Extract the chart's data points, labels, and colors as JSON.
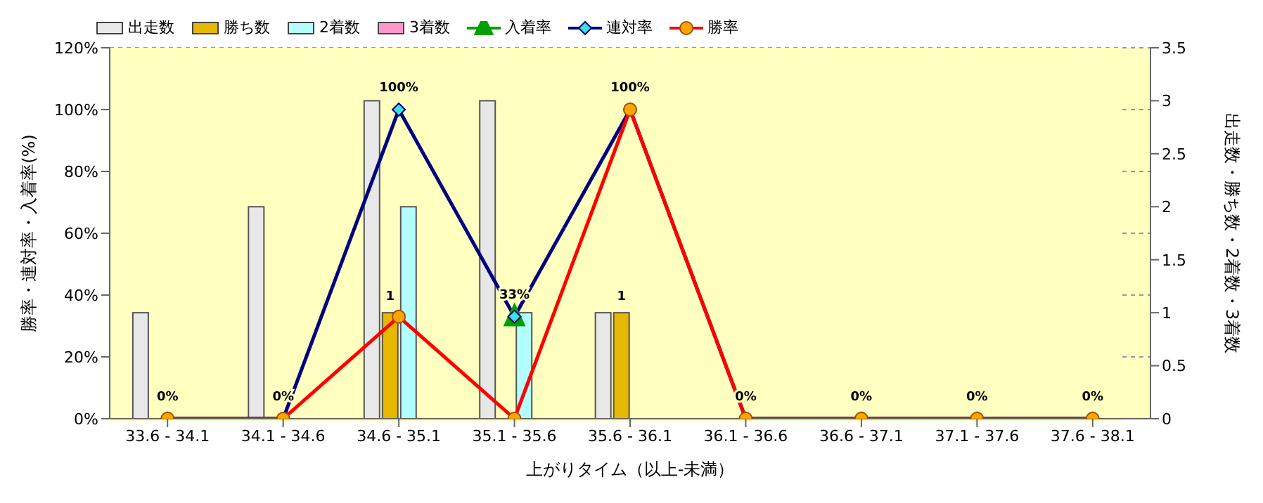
{
  "chart_data": {
    "type": "bar",
    "xlabel": "上がりタイム（以上-未満）",
    "ylabel": "勝率・連対率・入着率(%)",
    "y2label": "出走数・勝ち数・2着数・3着数",
    "categories": [
      "33.6 - 34.1",
      "34.1 - 34.6",
      "34.6 - 35.1",
      "35.1 - 35.6",
      "35.6 - 36.1",
      "36.1 - 36.6",
      "36.6 - 37.1",
      "37.1 - 37.6",
      "37.6 - 38.1"
    ],
    "series": [
      {
        "name": "出走数",
        "axis": "y2",
        "color": "#e8e8e8",
        "values": [
          1,
          2,
          3,
          3,
          1,
          0,
          0,
          0,
          0
        ]
      },
      {
        "name": "勝ち数",
        "axis": "y2",
        "color": "#e6b800",
        "values": [
          0,
          0,
          1,
          0,
          1,
          0,
          0,
          0,
          0
        ],
        "value_labels": [
          null,
          null,
          "1",
          null,
          "1",
          null,
          null,
          null,
          null
        ]
      },
      {
        "name": "2着数",
        "axis": "y2",
        "color": "#b3ffff",
        "values": [
          0,
          0,
          2,
          1,
          0,
          0,
          0,
          0,
          0
        ]
      },
      {
        "name": "3着数",
        "axis": "y2",
        "color": "#ff99cc",
        "values": [
          0,
          0,
          0,
          0,
          0,
          0,
          0,
          0,
          0
        ]
      },
      {
        "name": "入着率",
        "type": "line",
        "color": "#00a000",
        "marker": "triangle",
        "values": [
          null,
          null,
          null,
          33,
          null,
          null,
          null,
          null,
          null
        ]
      },
      {
        "name": "連対率",
        "type": "line",
        "color": "#000080",
        "marker": "diamond",
        "values": [
          0,
          0,
          100,
          33,
          100,
          0,
          0,
          0,
          0
        ],
        "value_labels": [
          "0%",
          "0%",
          "100%",
          "33%",
          "100%",
          "0%",
          "0%",
          "0%",
          "0%"
        ]
      },
      {
        "name": "勝率",
        "type": "line",
        "color": "#ff0000",
        "marker": "circle",
        "values": [
          0,
          0,
          33,
          0,
          100,
          0,
          0,
          0,
          0
        ]
      }
    ],
    "ylim": [
      0,
      120
    ],
    "yticks": [
      {
        "value": 0,
        "label": "0%"
      },
      {
        "value": 20,
        "label": "20%"
      },
      {
        "value": 40,
        "label": "40%"
      },
      {
        "value": 60,
        "label": "60%"
      },
      {
        "value": 80,
        "label": "80%"
      },
      {
        "value": 100,
        "label": "100%"
      },
      {
        "value": 120,
        "label": "120%"
      }
    ],
    "y2lim": [
      0,
      3.5
    ],
    "y2ticks": [
      0,
      0.5,
      1,
      1.5,
      2,
      2.5,
      3,
      3.5
    ],
    "grid": true,
    "legend": "top left"
  }
}
